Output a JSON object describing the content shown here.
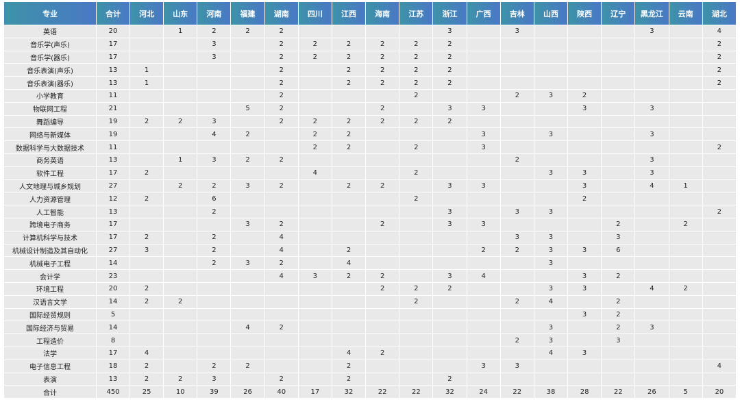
{
  "table": {
    "header": [
      "专业",
      "合计",
      "河北",
      "山东",
      "河南",
      "福建",
      "湖南",
      "四川",
      "江西",
      "海南",
      "江苏",
      "浙江",
      "广西",
      "吉林",
      "山西",
      "陕西",
      "辽宁",
      "黑龙江",
      "云南",
      "湖北"
    ],
    "rows": [
      [
        "英语",
        20,
        null,
        1,
        2,
        2,
        2,
        null,
        null,
        null,
        null,
        3,
        null,
        3,
        null,
        null,
        null,
        3,
        null,
        4
      ],
      [
        "音乐学(声乐)",
        17,
        null,
        null,
        3,
        null,
        2,
        2,
        2,
        2,
        2,
        2,
        null,
        null,
        null,
        null,
        null,
        null,
        null,
        2
      ],
      [
        "音乐学(器乐)",
        17,
        null,
        null,
        3,
        null,
        2,
        2,
        2,
        2,
        2,
        2,
        null,
        null,
        null,
        null,
        null,
        null,
        null,
        2
      ],
      [
        "音乐表演(声乐)",
        13,
        1,
        null,
        null,
        null,
        2,
        null,
        2,
        2,
        2,
        2,
        null,
        null,
        null,
        null,
        null,
        null,
        null,
        2
      ],
      [
        "音乐表演(器乐)",
        13,
        1,
        null,
        null,
        null,
        2,
        null,
        2,
        2,
        2,
        2,
        null,
        null,
        null,
        null,
        null,
        null,
        null,
        2
      ],
      [
        "小学教育",
        11,
        null,
        null,
        null,
        null,
        2,
        null,
        null,
        null,
        2,
        null,
        null,
        2,
        3,
        2,
        null,
        null,
        null,
        null
      ],
      [
        "物联网工程",
        21,
        null,
        null,
        null,
        5,
        2,
        null,
        null,
        2,
        null,
        3,
        3,
        null,
        null,
        3,
        null,
        3,
        null,
        null
      ],
      [
        "舞蹈编导",
        19,
        2,
        2,
        3,
        null,
        2,
        2,
        2,
        2,
        2,
        2,
        null,
        null,
        null,
        null,
        null,
        null,
        null,
        null
      ],
      [
        "网络与新媒体",
        19,
        null,
        null,
        4,
        2,
        null,
        2,
        2,
        null,
        null,
        null,
        3,
        null,
        3,
        null,
        null,
        3,
        null,
        null
      ],
      [
        "数据科学与大数据技术",
        11,
        null,
        null,
        null,
        null,
        null,
        2,
        2,
        null,
        2,
        null,
        3,
        null,
        null,
        null,
        null,
        null,
        null,
        2
      ],
      [
        "商务英语",
        13,
        null,
        1,
        3,
        2,
        2,
        null,
        null,
        null,
        null,
        null,
        null,
        2,
        null,
        null,
        null,
        3,
        null,
        null
      ],
      [
        "软件工程",
        17,
        2,
        null,
        null,
        null,
        null,
        4,
        null,
        null,
        2,
        null,
        null,
        null,
        3,
        3,
        null,
        3,
        null,
        null
      ],
      [
        "人文地理与城乡规划",
        27,
        null,
        2,
        2,
        3,
        2,
        null,
        2,
        2,
        null,
        3,
        3,
        null,
        null,
        3,
        null,
        4,
        1,
        null
      ],
      [
        "人力资源管理",
        12,
        2,
        null,
        6,
        null,
        null,
        null,
        null,
        null,
        2,
        null,
        null,
        null,
        null,
        2,
        null,
        null,
        null,
        null
      ],
      [
        "人工智能",
        13,
        null,
        null,
        2,
        null,
        null,
        null,
        null,
        null,
        null,
        3,
        null,
        3,
        3,
        null,
        null,
        null,
        null,
        2
      ],
      [
        "跨境电子商务",
        17,
        null,
        null,
        null,
        3,
        2,
        null,
        null,
        2,
        null,
        3,
        3,
        null,
        null,
        null,
        2,
        null,
        2,
        null
      ],
      [
        "计算机科学与技术",
        17,
        2,
        null,
        2,
        null,
        4,
        null,
        null,
        null,
        null,
        null,
        null,
        3,
        3,
        null,
        3,
        null,
        null,
        null
      ],
      [
        "机械设计制造及其自动化",
        27,
        3,
        null,
        2,
        null,
        4,
        null,
        2,
        null,
        null,
        null,
        2,
        2,
        3,
        3,
        6,
        null,
        null,
        null
      ],
      [
        "机械电子工程",
        14,
        null,
        null,
        2,
        3,
        2,
        null,
        4,
        null,
        null,
        null,
        null,
        null,
        3,
        null,
        null,
        null,
        null,
        null
      ],
      [
        "会计学",
        23,
        null,
        null,
        null,
        null,
        4,
        3,
        2,
        2,
        null,
        3,
        4,
        null,
        null,
        3,
        2,
        null,
        null,
        null
      ],
      [
        "环境工程",
        20,
        2,
        null,
        null,
        null,
        null,
        null,
        null,
        2,
        2,
        2,
        null,
        null,
        3,
        3,
        null,
        4,
        2,
        null
      ],
      [
        "汉语言文学",
        14,
        2,
        2,
        null,
        null,
        null,
        null,
        null,
        null,
        2,
        null,
        null,
        2,
        4,
        null,
        2,
        null,
        null,
        null
      ],
      [
        "国际经贸规则",
        5,
        null,
        null,
        null,
        null,
        null,
        null,
        null,
        null,
        null,
        null,
        null,
        null,
        null,
        3,
        2,
        null,
        null,
        null
      ],
      [
        "国际经济与贸易",
        14,
        null,
        null,
        null,
        4,
        2,
        null,
        null,
        null,
        null,
        null,
        null,
        null,
        3,
        null,
        2,
        3,
        null,
        null
      ],
      [
        "工程造价",
        8,
        null,
        null,
        null,
        null,
        null,
        null,
        null,
        null,
        null,
        null,
        null,
        2,
        3,
        null,
        3,
        null,
        null,
        null
      ],
      [
        "法学",
        17,
        4,
        null,
        null,
        null,
        null,
        null,
        4,
        2,
        null,
        null,
        null,
        null,
        4,
        3,
        null,
        null,
        null,
        null
      ],
      [
        "电子信息工程",
        18,
        2,
        null,
        2,
        2,
        null,
        null,
        2,
        null,
        null,
        null,
        3,
        3,
        null,
        null,
        null,
        null,
        null,
        4
      ],
      [
        "表演",
        13,
        2,
        2,
        3,
        null,
        2,
        null,
        2,
        null,
        null,
        2,
        null,
        null,
        null,
        null,
        null,
        null,
        null,
        null
      ]
    ],
    "footer": [
      "合计",
      450,
      25,
      10,
      39,
      26,
      40,
      17,
      32,
      22,
      22,
      32,
      24,
      22,
      38,
      28,
      22,
      26,
      5,
      20
    ]
  }
}
